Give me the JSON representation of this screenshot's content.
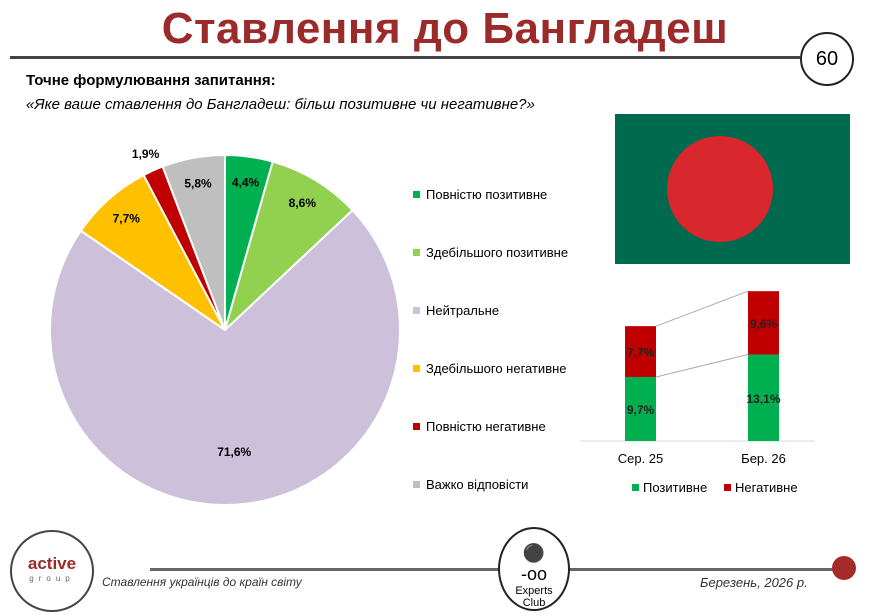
{
  "header": {
    "title": "Ставлення до Бангладеш",
    "page_number": "60"
  },
  "question": {
    "label": "Точне формулювання запитання:",
    "text": "«Яке ваше ставлення до Бангладеш: більш позитивне чи негативне?»"
  },
  "chart_data": [
    {
      "type": "pie",
      "title": "",
      "slices": [
        {
          "label": "Повністю позитивне",
          "value": 4.4,
          "display": "4,4%",
          "color": "#00b050"
        },
        {
          "label": "Здебільшого позитивне",
          "value": 8.6,
          "display": "8,6%",
          "color": "#92d050"
        },
        {
          "label": "Нейтральне",
          "value": 71.6,
          "display": "71,6%",
          "color": "#ccc0da"
        },
        {
          "label": "Здебільшого негативне",
          "value": 7.7,
          "display": "7,7%",
          "color": "#ffc000"
        },
        {
          "label": "Повністю негативне",
          "value": 1.9,
          "display": "1,9%",
          "color": "#c00000"
        },
        {
          "label": "Важко відповісти",
          "value": 5.8,
          "display": "5,8%",
          "color": "#bfbfbf"
        }
      ],
      "legend": [
        "Повністю позитивне",
        "Здебільшого позитивне",
        "Нейтральне",
        "Здебільшого негативне",
        "Повністю негативне",
        "Важко відповісти"
      ],
      "legend_placement": "right"
    },
    {
      "type": "bar",
      "stacked": true,
      "categories": [
        "Сер. 25",
        "Бер. 26"
      ],
      "series": [
        {
          "name": "Позитивне",
          "values": [
            9.7,
            13.1
          ],
          "display": [
            "9,7%",
            "13,1%"
          ],
          "color": "#00b050"
        },
        {
          "name": "Негативне",
          "values": [
            7.7,
            9.6
          ],
          "display": [
            "7,7%",
            "9,6%"
          ],
          "color": "#c00000"
        }
      ],
      "legend_placement": "bottom"
    }
  ],
  "footer": {
    "logo_main": "active",
    "logo_sub": "group",
    "subtitle": "Ставлення українців до країн світу",
    "center_logo_line1": "Experts",
    "center_logo_line2": "Club",
    "date": "Березень, 2026 р."
  }
}
